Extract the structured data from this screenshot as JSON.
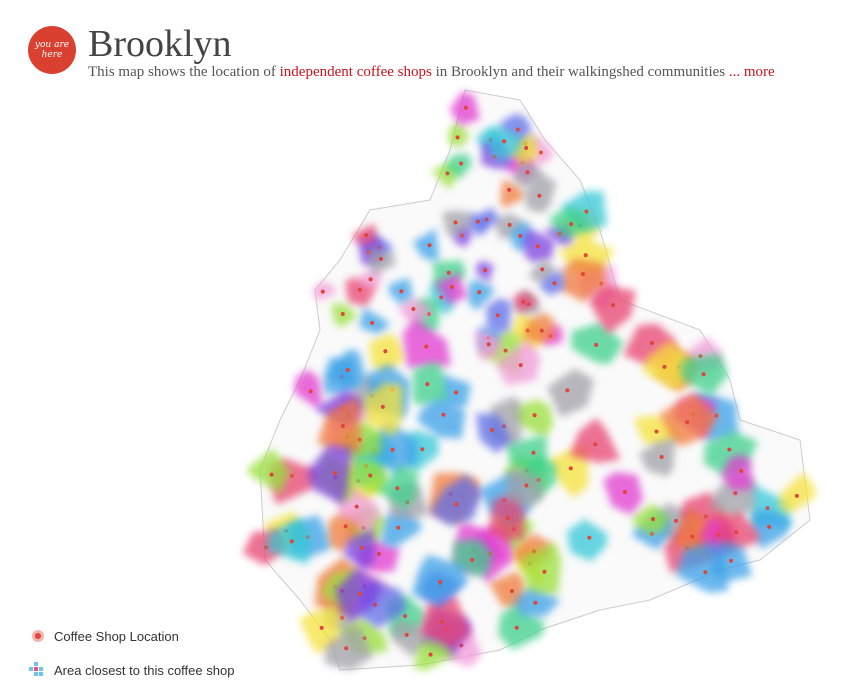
{
  "logo": "you are here",
  "header": {
    "title": "Brooklyn",
    "description": {
      "before": "This map shows the location of",
      "link": "independent coffee shops",
      "after": "in Brooklyn and their walkingshed communities",
      "more": "... more"
    }
  },
  "legend": {
    "items": [
      "Coffee Shop Location",
      "Area closest to this coffee shop"
    ]
  }
}
